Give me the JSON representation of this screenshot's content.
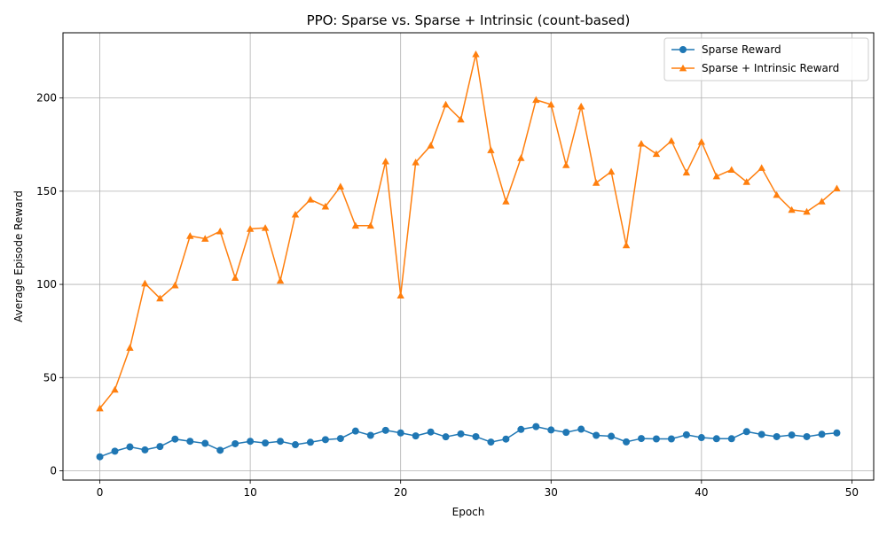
{
  "chart_data": {
    "type": "line",
    "title": "PPO: Sparse vs. Sparse + Intrinsic (count-based)",
    "xlabel": "Epoch",
    "ylabel": "Average Episode Reward",
    "xlim": [
      -2.45,
      51.45
    ],
    "ylim": [
      -5.0,
      235.0
    ],
    "xticks": [
      0,
      10,
      20,
      30,
      40,
      50
    ],
    "yticks": [
      0,
      50,
      100,
      150,
      200
    ],
    "grid": true,
    "legend_position": "top-right",
    "x": [
      0,
      1,
      2,
      3,
      4,
      5,
      6,
      7,
      8,
      9,
      10,
      11,
      12,
      13,
      14,
      15,
      16,
      17,
      18,
      19,
      20,
      21,
      22,
      23,
      24,
      25,
      26,
      27,
      28,
      29,
      30,
      31,
      32,
      33,
      34,
      35,
      36,
      37,
      38,
      39,
      40,
      41,
      42,
      43,
      44,
      45,
      46,
      47,
      48,
      49
    ],
    "series": [
      {
        "name": "Sparse Reward",
        "color": "#1f77b4",
        "marker": "circle",
        "values": [
          7.5,
          10.5,
          12.8,
          11.2,
          13.0,
          17.0,
          15.8,
          14.7,
          11.0,
          14.5,
          15.8,
          14.9,
          15.8,
          14.0,
          15.3,
          16.7,
          17.3,
          21.3,
          19.0,
          21.7,
          20.3,
          18.7,
          20.8,
          18.2,
          19.8,
          18.3,
          15.4,
          17.0,
          22.2,
          23.7,
          21.9,
          20.6,
          22.3,
          19.0,
          18.5,
          15.5,
          17.3,
          17.1,
          17.1,
          19.3,
          17.8,
          17.2,
          17.2,
          21.0,
          19.5,
          18.3,
          19.2,
          18.3,
          19.6,
          20.3
        ]
      },
      {
        "name": "Sparse + Intrinsic Reward",
        "color": "#ff7f0e",
        "marker": "triangle",
        "values": [
          33.5,
          43.5,
          66.0,
          100.5,
          92.5,
          99.5,
          126.0,
          124.5,
          128.5,
          103.5,
          129.8,
          130.3,
          102.0,
          137.5,
          145.5,
          141.8,
          152.5,
          131.5,
          131.5,
          166.0,
          94.0,
          165.5,
          174.5,
          196.5,
          188.5,
          223.5,
          172.0,
          144.5,
          167.8,
          199.0,
          196.5,
          164.0,
          195.5,
          154.5,
          160.5,
          121.0,
          175.5,
          170.0,
          177.0,
          160.0,
          176.5,
          158.0,
          161.5,
          155.0,
          162.5,
          148.0,
          140.0,
          139.0,
          144.5,
          151.5
        ]
      }
    ]
  }
}
